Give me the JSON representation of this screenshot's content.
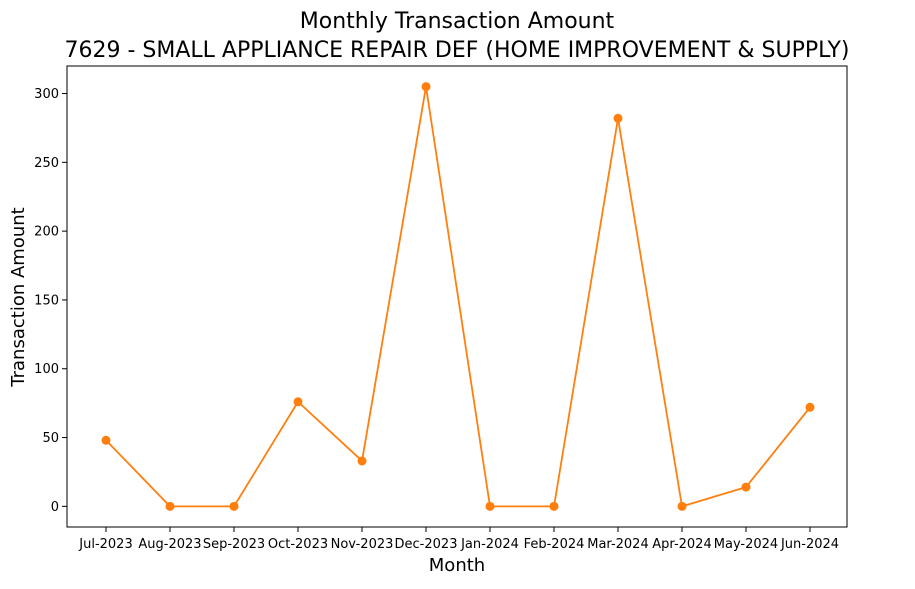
{
  "chart_data": {
    "type": "line",
    "title": "Monthly Transaction Amount",
    "subtitle": "7629 - SMALL APPLIANCE REPAIR DEF (HOME IMPROVEMENT & SUPPLY)",
    "xlabel": "Month",
    "ylabel": "Transaction Amount",
    "categories": [
      "Jul-2023",
      "Aug-2023",
      "Sep-2023",
      "Oct-2023",
      "Nov-2023",
      "Dec-2023",
      "Jan-2024",
      "Feb-2024",
      "Mar-2024",
      "Apr-2024",
      "May-2024",
      "Jun-2024"
    ],
    "series": [
      {
        "color": "#ff7f0e",
        "marker": "circle",
        "values": [
          48,
          0,
          0,
          76,
          33,
          305,
          0,
          0,
          282,
          0,
          14,
          72
        ]
      }
    ],
    "yticks": [
      0,
      50,
      100,
      150,
      200,
      250,
      300
    ],
    "ylim": [
      -15,
      320
    ],
    "grid": false,
    "legend": "none"
  }
}
